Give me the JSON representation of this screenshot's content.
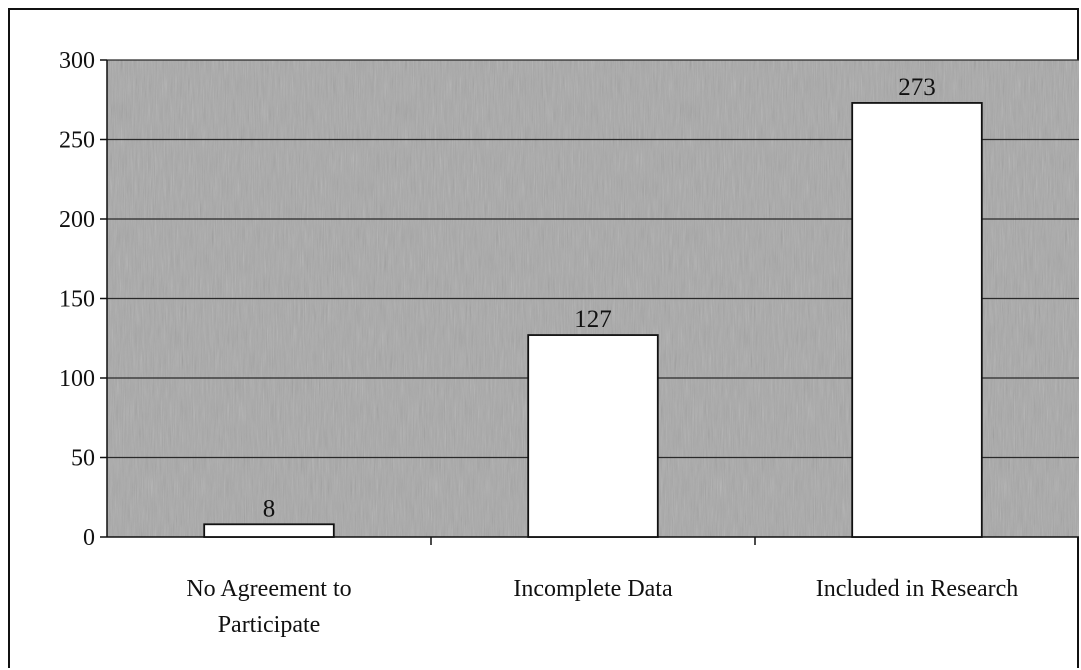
{
  "chart_data": {
    "type": "bar",
    "categories": [
      [
        "No Agreement to",
        "Participate"
      ],
      [
        "Incomplete Data"
      ],
      [
        "Included in Research"
      ]
    ],
    "values": [
      8,
      127,
      273
    ],
    "data_labels": [
      "8",
      "127",
      "273"
    ],
    "title": "",
    "xlabel": "",
    "ylabel": "",
    "ylim": [
      0,
      300
    ],
    "yticks": [
      0,
      50,
      100,
      150,
      200,
      250,
      300
    ],
    "ytick_labels": [
      "0",
      "50",
      "100",
      "150",
      "200",
      "250",
      "300"
    ],
    "grid": true,
    "legend": "none",
    "colors": {
      "plot_background": "#a8a8a8",
      "bar_fill": "#ffffff",
      "bar_stroke": "#111111",
      "gridline": "#2a2a2a"
    }
  }
}
